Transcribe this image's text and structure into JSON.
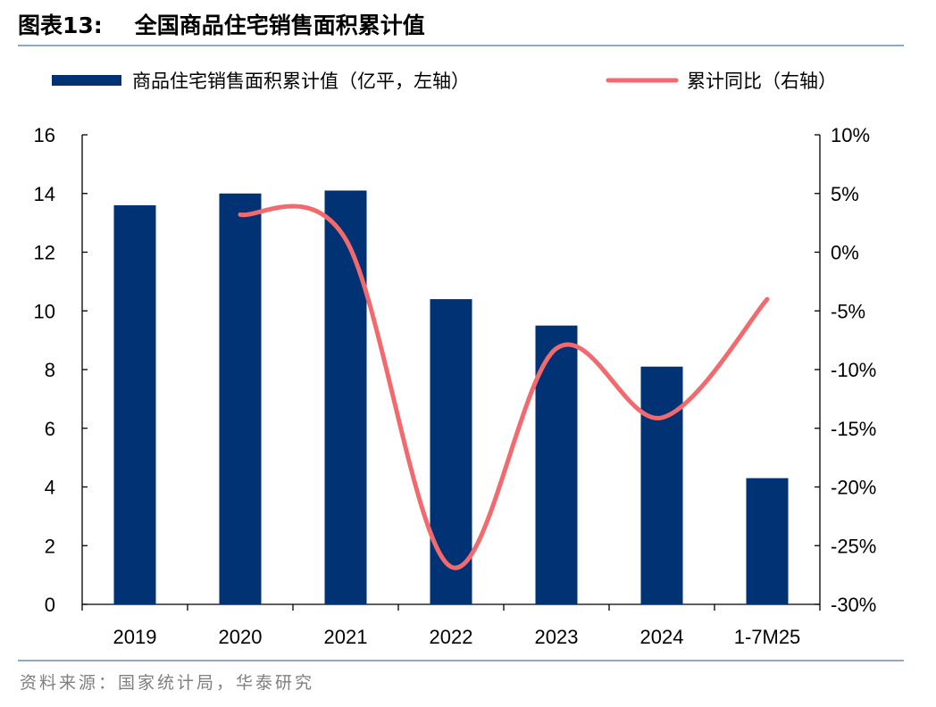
{
  "figure": {
    "number": "图表13:",
    "title": "全国商品住宅销售面积累计值",
    "source": "资料来源：国家统计局，华泰研究"
  },
  "colors": {
    "bar": "#003274",
    "line": "#f26a6e",
    "rule": "#8ea9c8",
    "axis": "#000000",
    "source_text": "#7f7f7f"
  },
  "chart_data": {
    "type": "bar",
    "categories": [
      "2019",
      "2020",
      "2021",
      "2022",
      "2023",
      "2024",
      "1-7M25"
    ],
    "title": "",
    "legend_position": "top",
    "grid": false,
    "series": [
      {
        "name": "商品住宅销售面积累计值（亿平，左轴）",
        "type": "bar",
        "axis": "left",
        "values": [
          13.6,
          14.0,
          14.1,
          10.4,
          9.5,
          8.1,
          4.3
        ]
      },
      {
        "name": "累计同比（右轴）",
        "type": "line",
        "axis": "right",
        "values": [
          null,
          3.2,
          1.1,
          -26.8,
          -8.2,
          -14.1,
          -4.0
        ]
      }
    ],
    "y_left": {
      "range": [
        0,
        16
      ],
      "ticks": [
        0,
        2,
        4,
        6,
        8,
        10,
        12,
        14,
        16
      ],
      "tick_labels": [
        "0",
        "2",
        "4",
        "6",
        "8",
        "10",
        "12",
        "14",
        "16"
      ]
    },
    "y_right": {
      "range": [
        -30,
        10
      ],
      "ticks": [
        -30,
        -25,
        -20,
        -15,
        -10,
        -5,
        0,
        5,
        10
      ],
      "tick_labels": [
        "-30%",
        "-25%",
        "-20%",
        "-15%",
        "-10%",
        "-5%",
        "0%",
        "5%",
        "10%"
      ]
    }
  }
}
